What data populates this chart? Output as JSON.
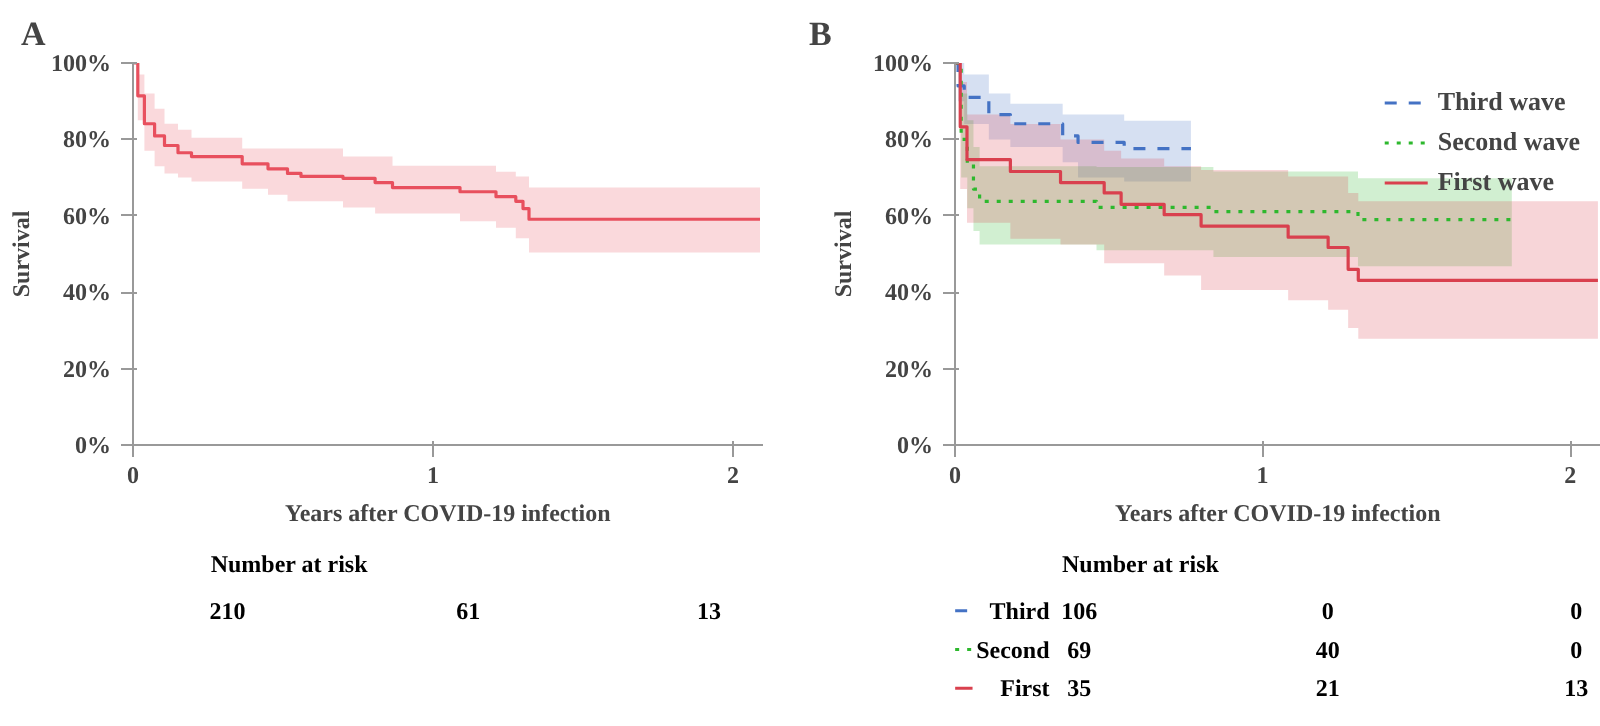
{
  "chart_data": [
    {
      "type": "step",
      "title": "A",
      "xlabel": "Years after COVID-19 infection",
      "ylabel": "Survival",
      "xlim": [
        0,
        2.1
      ],
      "xticks": [
        0,
        1,
        2
      ],
      "ylim": [
        0,
        100
      ],
      "yticks": [
        {
          "value": 0,
          "label": "0%"
        },
        {
          "value": 20,
          "label": "20%"
        },
        {
          "value": 40,
          "label": "40%"
        },
        {
          "value": 60,
          "label": "60%"
        },
        {
          "value": 80,
          "label": "80%"
        },
        {
          "value": 100,
          "label": "100%"
        }
      ],
      "grid": false,
      "legend": false,
      "series": [
        {
          "color": "#e8505e",
          "line_style": "solid",
          "x": [
            0,
            0.016,
            0.038,
            0.072,
            0.105,
            0.15,
            0.195,
            0.352,
            0.364,
            0.45,
            0.515,
            0.56,
            0.7,
            0.807,
            0.865,
            1.09,
            1.21,
            1.276,
            1.3,
            1.32,
            2.09
          ],
          "values": [
            100,
            91.4,
            84.1,
            80.9,
            78.4,
            76.5,
            75.5,
            75.5,
            73.6,
            72.3,
            71.1,
            70.3,
            69.8,
            68.7,
            67.4,
            66.3,
            65.0,
            63.8,
            61.9,
            59.1,
            59.1
          ],
          "upper": [
            100,
            97,
            92,
            88,
            84.1,
            82.5,
            80.4,
            80.4,
            77.6,
            77.6,
            77.6,
            77.6,
            75.5,
            75.5,
            73.1,
            73.1,
            71.5,
            70.3,
            70.3,
            67.4,
            67.4
          ],
          "lower": [
            100,
            85,
            77,
            73,
            71.1,
            70,
            69,
            69,
            67.1,
            65.5,
            63.8,
            63.8,
            62.2,
            60.6,
            60.6,
            58.6,
            56.9,
            54.1,
            54.1,
            50.4,
            50.4
          ]
        }
      ],
      "annotations": [
        "Number at risk",
        "210",
        "61",
        "13"
      ]
    },
    {
      "type": "step",
      "title": "B",
      "xlabel": "Years after COVID-19 infection",
      "ylabel": "Survival",
      "xlim": [
        0,
        2.1
      ],
      "xticks": [
        0,
        1,
        2
      ],
      "ylim": [
        0,
        100
      ],
      "yticks": [
        {
          "value": 0,
          "label": "0%"
        },
        {
          "value": 20,
          "label": "20%"
        },
        {
          "value": 40,
          "label": "40%"
        },
        {
          "value": 60,
          "label": "60%"
        },
        {
          "value": 80,
          "label": "80%"
        },
        {
          "value": 100,
          "label": "100%"
        }
      ],
      "grid": false,
      "legend": "top right",
      "series": [
        {
          "name": "Third wave",
          "color": "#4472c4",
          "line_style": "dashed",
          "x": [
            0,
            0.01,
            0.03,
            0.11,
            0.18,
            0.35,
            0.4,
            0.55,
            0.767
          ],
          "values": [
            100,
            94,
            91,
            86.5,
            84.1,
            80.9,
            79.2,
            77.6,
            77.6
          ],
          "upper": [
            100,
            100,
            97,
            92,
            89.3,
            86.5,
            86.5,
            84.9,
            84.9
          ],
          "lower": [
            100,
            90,
            84,
            80,
            78,
            74,
            70,
            69,
            69
          ]
        },
        {
          "name": "Second wave",
          "color": "#2db82d",
          "line_style": "dotted",
          "x": [
            0,
            0.02,
            0.04,
            0.06,
            0.08,
            0.46,
            0.84,
            1.31,
            1.81
          ],
          "values": [
            100,
            80,
            73.6,
            67,
            63.8,
            62.2,
            61.1,
            59.0,
            59.0
          ],
          "upper": [
            100,
            92,
            85,
            78,
            73,
            72.8,
            71.6,
            69.8,
            69.8
          ],
          "lower": [
            100,
            70,
            62,
            56,
            52.5,
            51,
            49.2,
            46.8,
            46.8
          ]
        },
        {
          "name": "First wave",
          "color": "#d9404e",
          "line_style": "solid",
          "x": [
            0,
            0.017,
            0.039,
            0.18,
            0.343,
            0.485,
            0.54,
            0.68,
            0.8,
            1.083,
            1.213,
            1.278,
            1.311,
            2.09
          ],
          "values": [
            100,
            83.3,
            74.7,
            71.6,
            68.7,
            66.0,
            63.0,
            60.3,
            57.3,
            54.4,
            51.7,
            46.0,
            43.1,
            43.1
          ],
          "upper": [
            100,
            95,
            86.5,
            84,
            80,
            77,
            75,
            73,
            72,
            70.3,
            70.3,
            66,
            63.8,
            63.8
          ],
          "lower": [
            100,
            67,
            58.2,
            54,
            52.5,
            47.6,
            47.6,
            44.4,
            40.6,
            37.9,
            35.4,
            30.6,
            27.8,
            27.8
          ]
        }
      ],
      "annotations": [
        "Number at risk",
        "Third",
        "106",
        "0",
        "0",
        "Second",
        "69",
        "40",
        "0",
        "First",
        "35",
        "21",
        "13"
      ]
    }
  ]
}
